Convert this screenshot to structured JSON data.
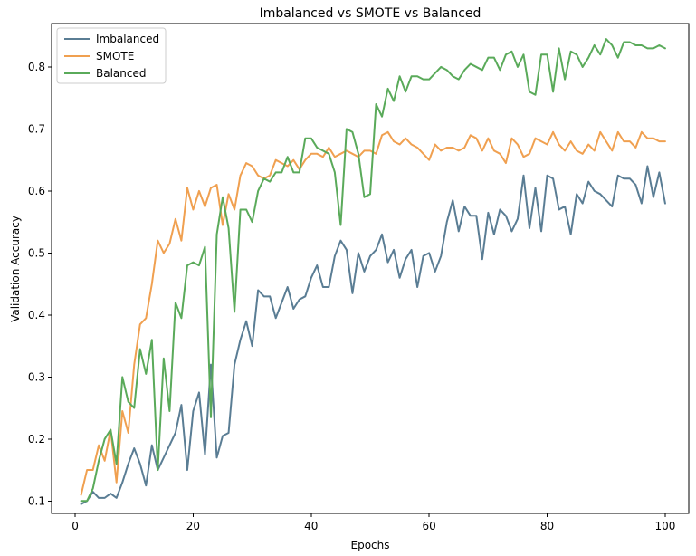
{
  "chart_data": {
    "type": "line",
    "title": "Imbalanced vs SMOTE vs Balanced",
    "xlabel": "Epochs",
    "ylabel": "Validation Accuracy",
    "xlim": [
      -4,
      104
    ],
    "ylim": [
      0.08,
      0.87
    ],
    "xticks": [
      0,
      20,
      40,
      60,
      80,
      100
    ],
    "yticks": [
      0.1,
      0.2,
      0.3,
      0.4,
      0.5,
      0.6,
      0.7,
      0.8
    ],
    "ytick_labels": [
      "0.1",
      "0.2",
      "0.3",
      "0.4",
      "0.5",
      "0.6",
      "0.7",
      "0.8"
    ],
    "grid": false,
    "legend_position": "top-left",
    "x": [
      1,
      2,
      3,
      4,
      5,
      6,
      7,
      8,
      9,
      10,
      11,
      12,
      13,
      14,
      15,
      16,
      17,
      18,
      19,
      20,
      21,
      22,
      23,
      24,
      25,
      26,
      27,
      28,
      29,
      30,
      31,
      32,
      33,
      34,
      35,
      36,
      37,
      38,
      39,
      40,
      41,
      42,
      43,
      44,
      45,
      46,
      47,
      48,
      49,
      50,
      51,
      52,
      53,
      54,
      55,
      56,
      57,
      58,
      59,
      60,
      61,
      62,
      63,
      64,
      65,
      66,
      67,
      68,
      69,
      70,
      71,
      72,
      73,
      74,
      75,
      76,
      77,
      78,
      79,
      80,
      81,
      82,
      83,
      84,
      85,
      86,
      87,
      88,
      89,
      90,
      91,
      92,
      93,
      94,
      95,
      96,
      97,
      98,
      99,
      100
    ],
    "series": [
      {
        "name": "Imbalanced",
        "color": "#5a7d94",
        "values": [
          0.095,
          0.1,
          0.115,
          0.105,
          0.105,
          0.112,
          0.105,
          0.13,
          0.16,
          0.185,
          0.16,
          0.125,
          0.19,
          0.15,
          0.17,
          0.19,
          0.21,
          0.255,
          0.15,
          0.245,
          0.275,
          0.175,
          0.32,
          0.17,
          0.205,
          0.21,
          0.32,
          0.36,
          0.39,
          0.35,
          0.44,
          0.43,
          0.43,
          0.395,
          0.42,
          0.445,
          0.41,
          0.425,
          0.43,
          0.46,
          0.48,
          0.445,
          0.445,
          0.495,
          0.52,
          0.505,
          0.435,
          0.5,
          0.47,
          0.495,
          0.505,
          0.53,
          0.485,
          0.505,
          0.46,
          0.49,
          0.505,
          0.445,
          0.495,
          0.5,
          0.47,
          0.495,
          0.55,
          0.585,
          0.535,
          0.575,
          0.56,
          0.56,
          0.49,
          0.565,
          0.53,
          0.57,
          0.56,
          0.535,
          0.555,
          0.625,
          0.54,
          0.605,
          0.535,
          0.625,
          0.62,
          0.57,
          0.575,
          0.53,
          0.595,
          0.58,
          0.615,
          0.6,
          0.595,
          0.585,
          0.575,
          0.625,
          0.62,
          0.62,
          0.61,
          0.58,
          0.64,
          0.59,
          0.63,
          0.58
        ]
      },
      {
        "name": "SMOTE",
        "color": "#f0a050",
        "values": [
          0.11,
          0.15,
          0.15,
          0.19,
          0.165,
          0.215,
          0.13,
          0.245,
          0.21,
          0.32,
          0.385,
          0.395,
          0.45,
          0.52,
          0.5,
          0.515,
          0.555,
          0.52,
          0.605,
          0.57,
          0.6,
          0.575,
          0.605,
          0.61,
          0.545,
          0.595,
          0.57,
          0.625,
          0.645,
          0.64,
          0.625,
          0.62,
          0.625,
          0.65,
          0.645,
          0.64,
          0.65,
          0.635,
          0.65,
          0.66,
          0.66,
          0.655,
          0.67,
          0.655,
          0.66,
          0.665,
          0.66,
          0.655,
          0.665,
          0.665,
          0.66,
          0.69,
          0.695,
          0.68,
          0.675,
          0.685,
          0.675,
          0.67,
          0.66,
          0.65,
          0.675,
          0.665,
          0.67,
          0.67,
          0.665,
          0.67,
          0.69,
          0.685,
          0.665,
          0.685,
          0.665,
          0.66,
          0.645,
          0.685,
          0.675,
          0.655,
          0.66,
          0.685,
          0.68,
          0.675,
          0.695,
          0.675,
          0.665,
          0.68,
          0.665,
          0.66,
          0.675,
          0.665,
          0.695,
          0.68,
          0.665,
          0.695,
          0.68,
          0.68,
          0.67,
          0.695,
          0.685,
          0.685,
          0.68,
          0.68
        ]
      },
      {
        "name": "Balanced",
        "color": "#5aaa5a",
        "values": [
          0.1,
          0.1,
          0.12,
          0.165,
          0.2,
          0.215,
          0.16,
          0.3,
          0.26,
          0.25,
          0.345,
          0.305,
          0.36,
          0.15,
          0.33,
          0.245,
          0.42,
          0.395,
          0.48,
          0.485,
          0.48,
          0.51,
          0.235,
          0.53,
          0.59,
          0.54,
          0.405,
          0.57,
          0.57,
          0.55,
          0.6,
          0.62,
          0.615,
          0.63,
          0.63,
          0.655,
          0.63,
          0.63,
          0.685,
          0.685,
          0.67,
          0.665,
          0.66,
          0.63,
          0.545,
          0.7,
          0.695,
          0.66,
          0.59,
          0.595,
          0.74,
          0.72,
          0.765,
          0.745,
          0.785,
          0.76,
          0.785,
          0.785,
          0.78,
          0.78,
          0.79,
          0.8,
          0.795,
          0.785,
          0.78,
          0.795,
          0.805,
          0.8,
          0.795,
          0.815,
          0.815,
          0.795,
          0.82,
          0.825,
          0.8,
          0.82,
          0.76,
          0.755,
          0.82,
          0.82,
          0.76,
          0.83,
          0.78,
          0.825,
          0.82,
          0.8,
          0.815,
          0.835,
          0.82,
          0.845,
          0.835,
          0.815,
          0.84,
          0.84,
          0.835,
          0.835,
          0.83,
          0.83,
          0.835,
          0.83
        ]
      }
    ]
  }
}
